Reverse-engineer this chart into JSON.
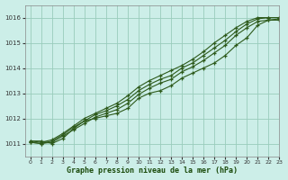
{
  "title": "Graphe pression niveau de la mer (hPa)",
  "bg_color": "#cceee8",
  "grid_color": "#99ccbb",
  "line_color": "#2d5a1b",
  "xlim": [
    -0.5,
    23
  ],
  "ylim": [
    1010.5,
    1016.5
  ],
  "yticks": [
    1011,
    1012,
    1013,
    1014,
    1015,
    1016
  ],
  "xticks": [
    0,
    1,
    2,
    3,
    4,
    5,
    6,
    7,
    8,
    9,
    10,
    11,
    12,
    13,
    14,
    15,
    16,
    17,
    18,
    19,
    20,
    21,
    22,
    23
  ],
  "series": [
    [
      1011.1,
      1011.1,
      1011.0,
      1011.2,
      1011.6,
      1011.9,
      1012.0,
      1012.1,
      1012.2,
      1012.4,
      1012.8,
      1013.0,
      1013.1,
      1013.3,
      1013.6,
      1013.8,
      1014.0,
      1014.2,
      1014.5,
      1014.9,
      1015.2,
      1015.7,
      1015.9,
      1015.9
    ],
    [
      1011.05,
      1011.0,
      1011.05,
      1011.3,
      1011.55,
      1011.8,
      1012.05,
      1012.2,
      1012.35,
      1012.6,
      1012.95,
      1013.2,
      1013.4,
      1013.55,
      1013.85,
      1014.05,
      1014.3,
      1014.6,
      1014.9,
      1015.3,
      1015.6,
      1015.85,
      1015.9,
      1015.95
    ],
    [
      1011.05,
      1011.0,
      1011.1,
      1011.35,
      1011.65,
      1011.9,
      1012.15,
      1012.3,
      1012.5,
      1012.75,
      1013.1,
      1013.35,
      1013.55,
      1013.7,
      1014.0,
      1014.2,
      1014.5,
      1014.8,
      1015.1,
      1015.45,
      1015.75,
      1015.95,
      1016.0,
      1016.0
    ],
    [
      1011.1,
      1011.05,
      1011.15,
      1011.4,
      1011.7,
      1012.0,
      1012.2,
      1012.4,
      1012.6,
      1012.9,
      1013.25,
      1013.5,
      1013.7,
      1013.9,
      1014.1,
      1014.35,
      1014.65,
      1015.0,
      1015.3,
      1015.6,
      1015.85,
      1016.0,
      1016.0,
      1016.0
    ]
  ]
}
